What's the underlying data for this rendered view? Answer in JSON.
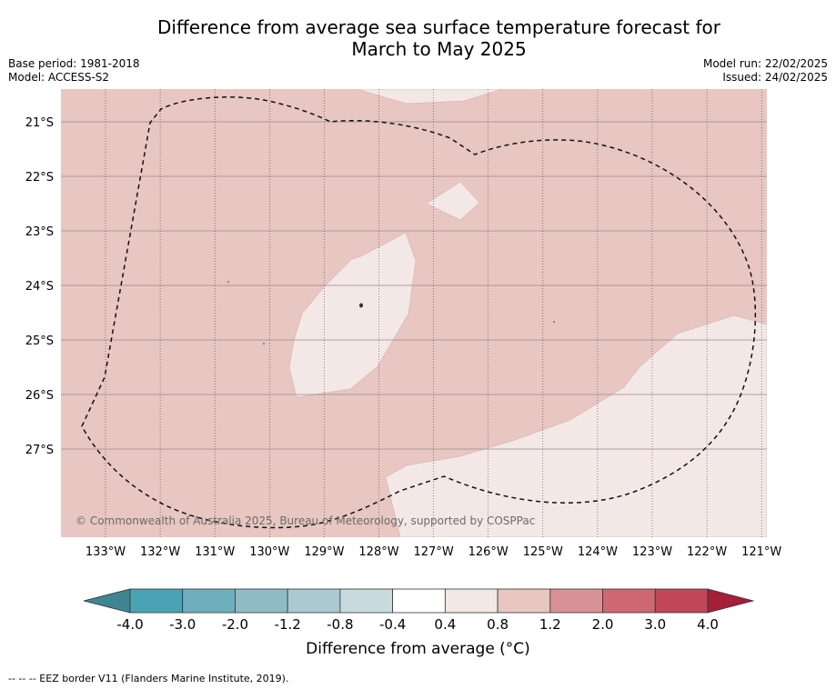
{
  "title_line1": "Difference from average sea surface temperature forecast for",
  "title_line2": "March to May 2025",
  "base_period": "Base period: 1981-2018",
  "model": "Model: ACCESS-S2",
  "model_run": "Model run: 22/02/2025",
  "issued": "Issued: 24/02/2025",
  "copyright": "© Commonwealth of Australia 2025, Bureau of Meteorology, supported by COSPPac",
  "footnote": "--  --  -- EEZ border V11 (Flanders Marine Institute, 2019).",
  "colorbar": {
    "title": "Difference from average (°C)",
    "ticks": [
      "-4.0",
      "-3.0",
      "-2.0",
      "-1.2",
      "-0.8",
      "-0.4",
      "0.4",
      "0.8",
      "1.2",
      "2.0",
      "3.0",
      "4.0"
    ],
    "colors": [
      "#4aa3b4",
      "#6eafbd",
      "#8ebbc6",
      "#abc9cf",
      "#c9dadf",
      "#ffffff",
      "#f4e8e7",
      "#e8c6c1",
      "#d99198",
      "#cd6871",
      "#c24756"
    ],
    "under_color": "#3f8592",
    "over_color": "#a51f3a"
  },
  "map": {
    "lon_labels": [
      "133°W",
      "132°W",
      "131°W",
      "130°W",
      "129°W",
      "128°W",
      "127°W",
      "126°W",
      "125°W",
      "124°W",
      "123°W",
      "122°W",
      "121°W"
    ],
    "lat_labels": [
      "21°S",
      "22°S",
      "23°S",
      "24°S",
      "25°S",
      "26°S",
      "27°S"
    ],
    "background_category": "0.8 to 1.2",
    "background_color": "#e8c6c1",
    "anomaly_color": "#f4e8e7"
  }
}
